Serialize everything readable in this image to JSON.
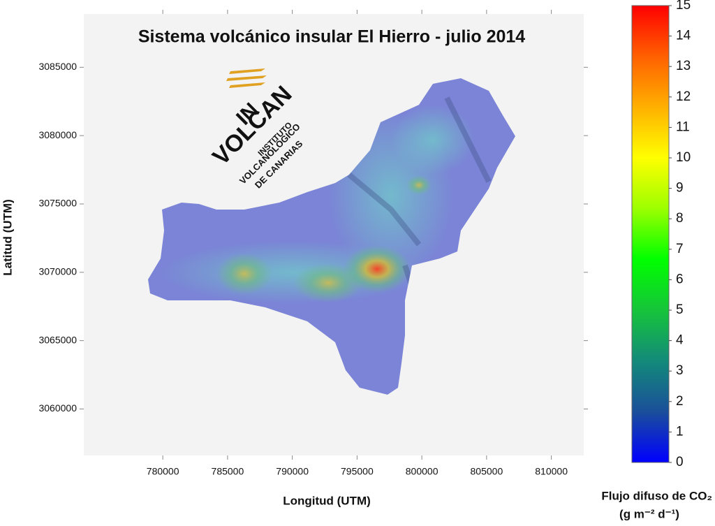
{
  "chart_data": {
    "type": "map",
    "title": "Sistema volcánico insular El Hierro - julio 2014",
    "x_label": "Longitud (UTM)",
    "y_label": "Latitud (UTM)",
    "xlim": [
      773900,
      812500
    ],
    "ylim": [
      3056600,
      3088900
    ],
    "xticks": [
      780000,
      785000,
      790000,
      795000,
      800000,
      805000,
      810000
    ],
    "yticks": [
      3060000,
      3065000,
      3070000,
      3075000,
      3080000,
      3085000
    ],
    "colorbar": {
      "label": "Flujo difuso de CO₂",
      "units": "(g m⁻² d⁻¹)",
      "lim": [
        0,
        15
      ],
      "ticks": [
        0,
        1,
        2,
        3,
        4,
        5,
        6,
        7,
        8,
        9,
        10,
        11,
        12,
        13,
        14,
        15
      ],
      "colors": [
        "#0000ff",
        "#1a4f9a",
        "#138a7a",
        "#16c43a",
        "#00ff00",
        "#9cff00",
        "#ffff00",
        "#ffb000",
        "#ff6000",
        "#ff0000"
      ]
    },
    "logo": {
      "mark": "IN",
      "name": "VOLCAN",
      "line1": "INSTITUTO",
      "line2": "VOLCANOLÓGICO",
      "line3": "DE CANARIAS"
    }
  }
}
